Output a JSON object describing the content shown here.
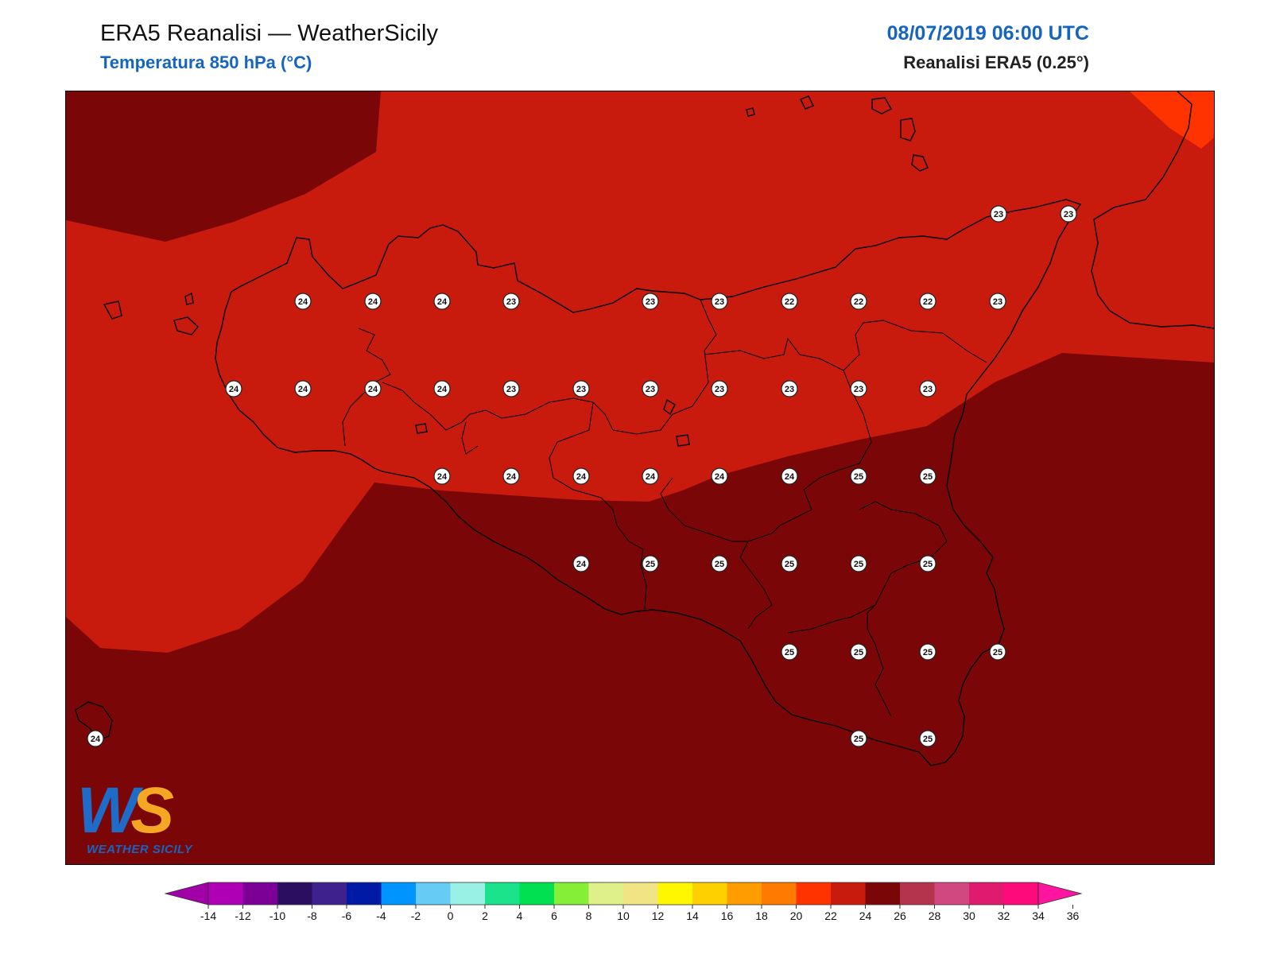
{
  "header": {
    "title": "ERA5 Reanalisi — WeatherSicily",
    "subtitle": "Temperatura 850 hPa (°C)",
    "datetime": "08/07/2019 06:00 UTC",
    "source": "Reanalisi ERA5 (0.25°)"
  },
  "logo": {
    "letters_w": "W",
    "letters_s": "S",
    "text": "WEATHER SICILY"
  },
  "colors": {
    "band_22_24": "#c91a0e",
    "band_24_26": "#7a0608",
    "band_20_22": "#ff3300",
    "coast": "#000000"
  },
  "colorbar": {
    "ticks": [
      "-14",
      "-12",
      "-10",
      "-8",
      "-6",
      "-4",
      "-2",
      "0",
      "2",
      "4",
      "6",
      "8",
      "10",
      "12",
      "14",
      "16",
      "18",
      "20",
      "22",
      "24",
      "26",
      "28",
      "30",
      "32",
      "34",
      "36"
    ],
    "colors": [
      "#b000b6",
      "#7d0096",
      "#2c0e60",
      "#3f218e",
      "#001aa6",
      "#0094ff",
      "#66ccf5",
      "#99f0e4",
      "#1ae38b",
      "#00e050",
      "#85ef38",
      "#dff08a",
      "#f0e485",
      "#fff700",
      "#ffd000",
      "#ff9d00",
      "#ff7a00",
      "#ff3300",
      "#c91a0e",
      "#7a0608",
      "#b4344e",
      "#d14780",
      "#e01a6e",
      "#ff0a7b"
    ],
    "low_arrow_color": "#a100a8",
    "high_arrow_color": "#ff14a0"
  },
  "stations": [
    {
      "v": "23"
    },
    {
      "v": "23"
    },
    {
      "v": "24"
    },
    {
      "v": "24"
    },
    {
      "v": "24"
    },
    {
      "v": "23"
    },
    {
      "v": "23"
    },
    {
      "v": "23"
    },
    {
      "v": "22"
    },
    {
      "v": "22"
    },
    {
      "v": "22"
    },
    {
      "v": "23"
    },
    {
      "v": "24"
    },
    {
      "v": "24"
    },
    {
      "v": "24"
    },
    {
      "v": "24"
    },
    {
      "v": "23"
    },
    {
      "v": "23"
    },
    {
      "v": "23"
    },
    {
      "v": "23"
    },
    {
      "v": "23"
    },
    {
      "v": "23"
    },
    {
      "v": "23"
    },
    {
      "v": "24"
    },
    {
      "v": "24"
    },
    {
      "v": "24"
    },
    {
      "v": "24"
    },
    {
      "v": "24"
    },
    {
      "v": "24"
    },
    {
      "v": "25"
    },
    {
      "v": "25"
    },
    {
      "v": "24"
    },
    {
      "v": "25"
    },
    {
      "v": "25"
    },
    {
      "v": "25"
    },
    {
      "v": "25"
    },
    {
      "v": "25"
    },
    {
      "v": "25"
    },
    {
      "v": "25"
    },
    {
      "v": "25"
    },
    {
      "v": "25"
    },
    {
      "v": "24"
    },
    {
      "v": "25"
    },
    {
      "v": "25"
    }
  ]
}
